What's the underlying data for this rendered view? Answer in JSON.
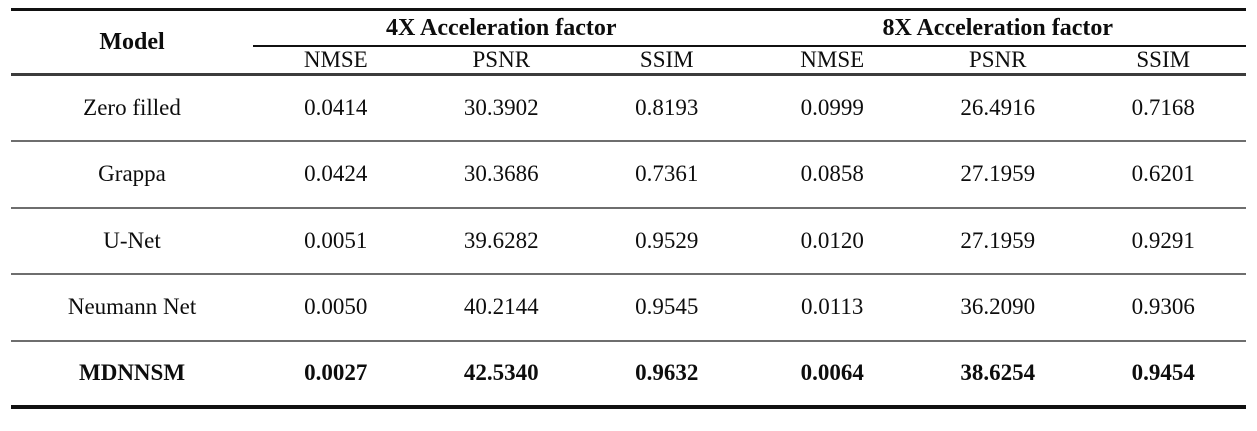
{
  "table": {
    "header": {
      "model_label": "Model",
      "groups": [
        {
          "label": "4X Acceleration factor"
        },
        {
          "label": "8X Acceleration factor"
        }
      ],
      "subheaders": [
        "NMSE",
        "PSNR",
        "SSIM",
        "NMSE",
        "PSNR",
        "SSIM"
      ]
    },
    "rows": [
      {
        "model": "Zero filled",
        "bold": false,
        "values": [
          "0.0414",
          "30.3902",
          "0.8193",
          "0.0999",
          "26.4916",
          "0.7168"
        ]
      },
      {
        "model": "Grappa",
        "bold": false,
        "values": [
          "0.0424",
          "30.3686",
          "0.7361",
          "0.0858",
          "27.1959",
          "0.6201"
        ]
      },
      {
        "model": "U-Net",
        "bold": false,
        "values": [
          "0.0051",
          "39.6282",
          "0.9529",
          "0.0120",
          "27.1959",
          "0.9291"
        ]
      },
      {
        "model": "Neumann Net",
        "bold": false,
        "values": [
          "0.0050",
          "40.2144",
          "0.9545",
          "0.0113",
          "36.2090",
          "0.9306"
        ]
      },
      {
        "model": "MDNNSM",
        "bold": true,
        "values": [
          "0.0027",
          "42.5340",
          "0.9632",
          "0.0064",
          "38.6254",
          "0.9454"
        ]
      }
    ],
    "colors": {
      "border_strong": "#111111",
      "border_row": "#6e6e6e",
      "text": "#0d0d0d",
      "background": "#ffffff"
    }
  }
}
